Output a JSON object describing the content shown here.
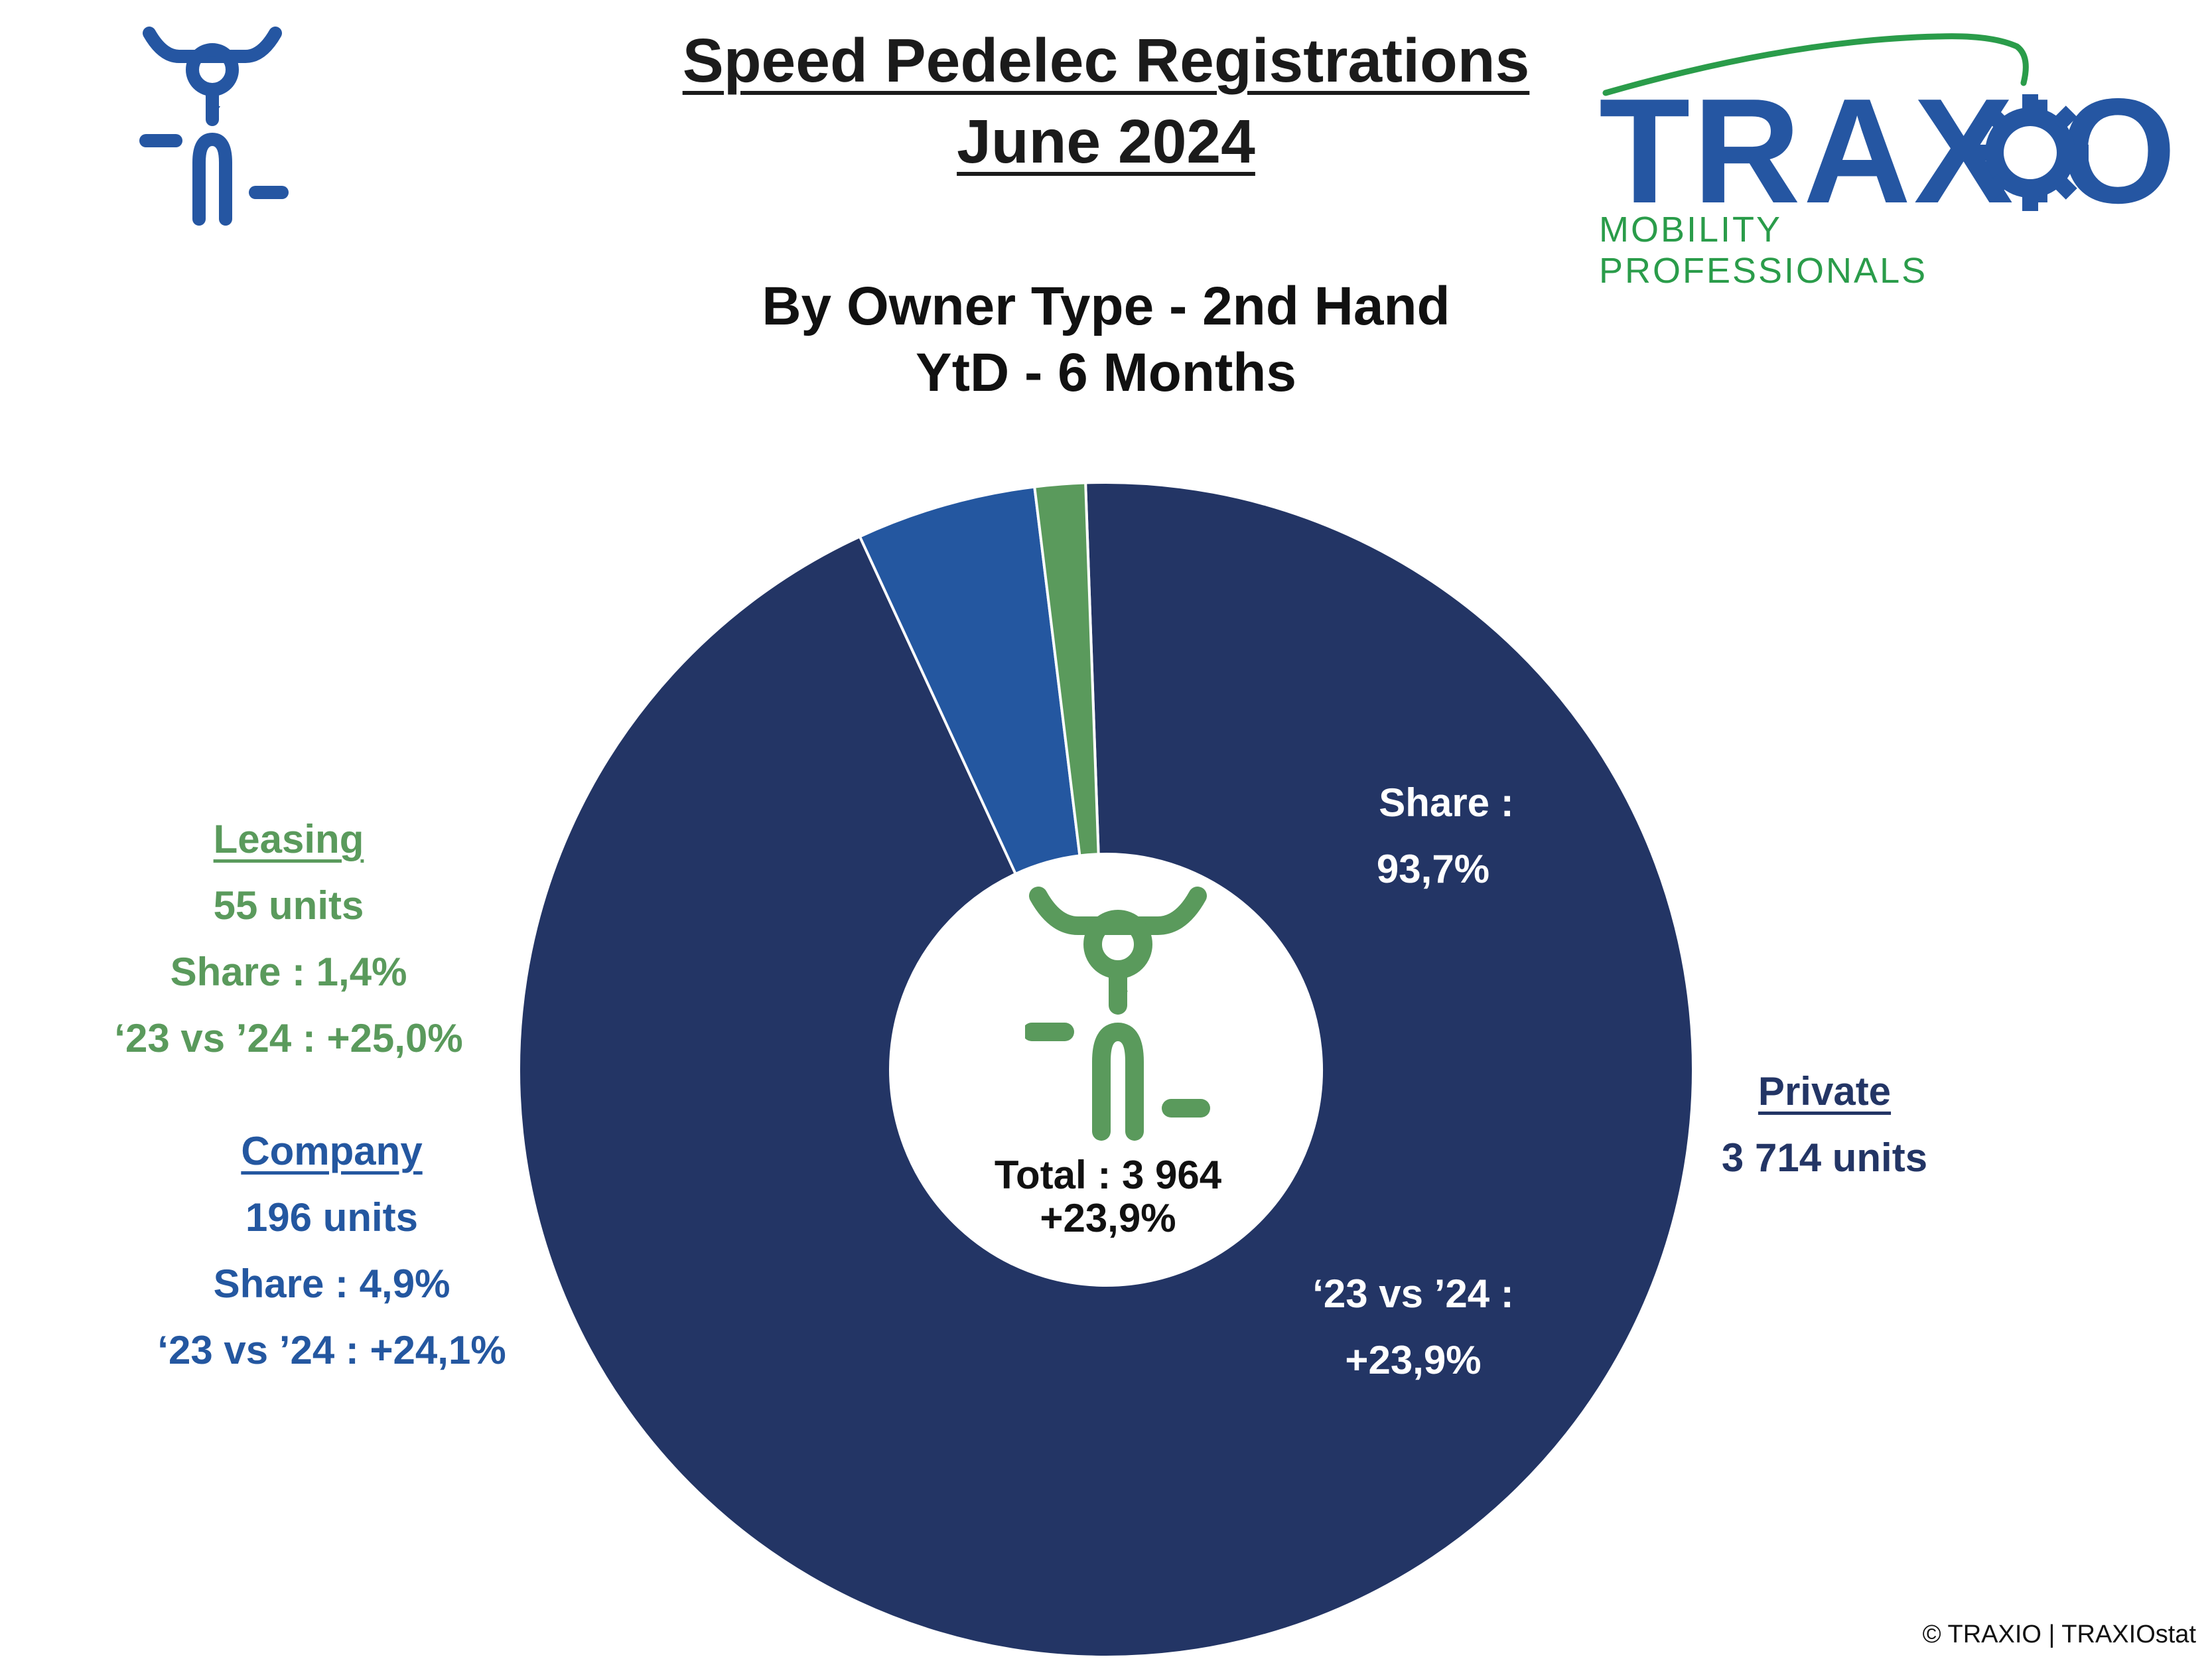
{
  "header": {
    "title_line1": "Speed Pedelec Registrations",
    "title_line2": "June 2024",
    "subtitle_line1": "By Owner Type - 2nd Hand",
    "subtitle_line2": "YtD - 6 Months"
  },
  "logo": {
    "name": "TRAXIO",
    "tagline": "MOBILITY PROFESSIONALS",
    "icon": "gear-icon",
    "colors": {
      "blue": "#2556a2",
      "green": "#2a9c4a"
    }
  },
  "footer": {
    "copyright": "© TRAXIO | TRAXIOstat"
  },
  "chart_data": {
    "type": "pie",
    "donut": true,
    "title": "By Owner Type - 2nd Hand",
    "categories": [
      "Private",
      "Leasing",
      "Company"
    ],
    "values": [
      3714,
      55,
      196
    ],
    "shares": [
      93.7,
      1.4,
      4.9
    ],
    "colors": [
      "#233565",
      "#5a9a5c",
      "#2457a0"
    ],
    "total": {
      "label": "Total : 3 964",
      "change": "+23,9%"
    },
    "labels": {
      "private": {
        "name": "Private",
        "units": "3 714 units",
        "share_label": "Share :",
        "share_value": "93,7%",
        "change_label": "‘23 vs ’24 :",
        "change_value": "+23,9%"
      },
      "leasing": {
        "name": "Leasing",
        "units": "55 units",
        "share": "Share : 1,4%",
        "change": "‘23 vs ’24 : +25,0%"
      },
      "company": {
        "name": "Company",
        "units": "196 units",
        "share": "Share : 4,9%",
        "change": "‘23 vs ’24 : +24,1%"
      }
    }
  }
}
